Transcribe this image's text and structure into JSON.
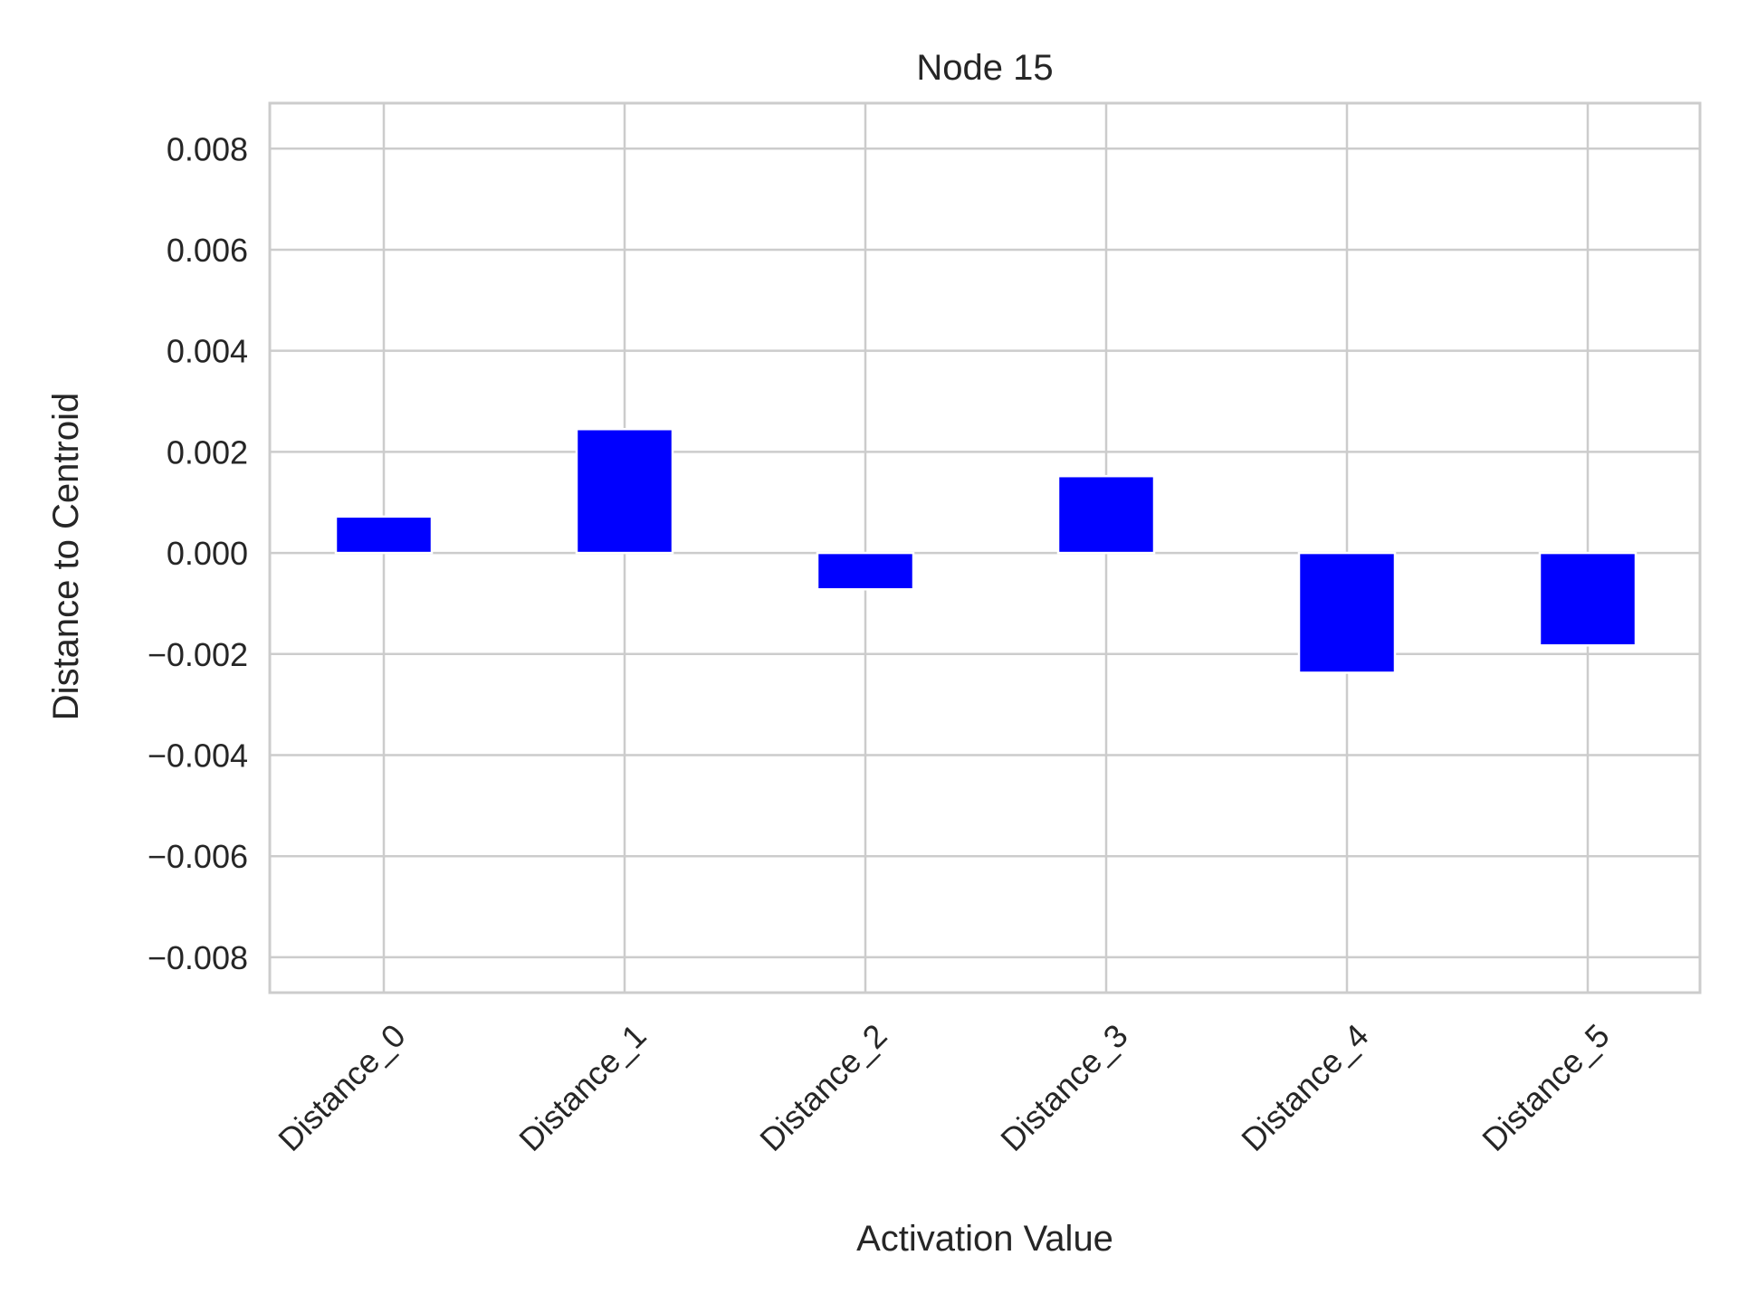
{
  "chart_data": {
    "type": "bar",
    "title": "Node 15",
    "xlabel": "Activation Value",
    "ylabel": "Distance to Centroid",
    "categories": [
      "Distance_0",
      "Distance_1",
      "Distance_2",
      "Distance_3",
      "Distance_4",
      "Distance_5"
    ],
    "values": [
      0.00072,
      0.00245,
      -0.00072,
      0.00152,
      -0.00237,
      -0.00183
    ],
    "ylim": [
      -0.0087,
      0.0089
    ],
    "yticks": [
      -0.008,
      -0.006,
      -0.004,
      -0.002,
      0.0,
      0.002,
      0.004,
      0.006,
      0.008
    ],
    "ytick_labels": [
      "−0.008",
      "−0.006",
      "−0.004",
      "−0.002",
      "0.000",
      "0.002",
      "0.004",
      "0.006",
      "0.008"
    ],
    "grid": true,
    "bar_color": "#0000ff",
    "grid_color": "#cccccc"
  }
}
